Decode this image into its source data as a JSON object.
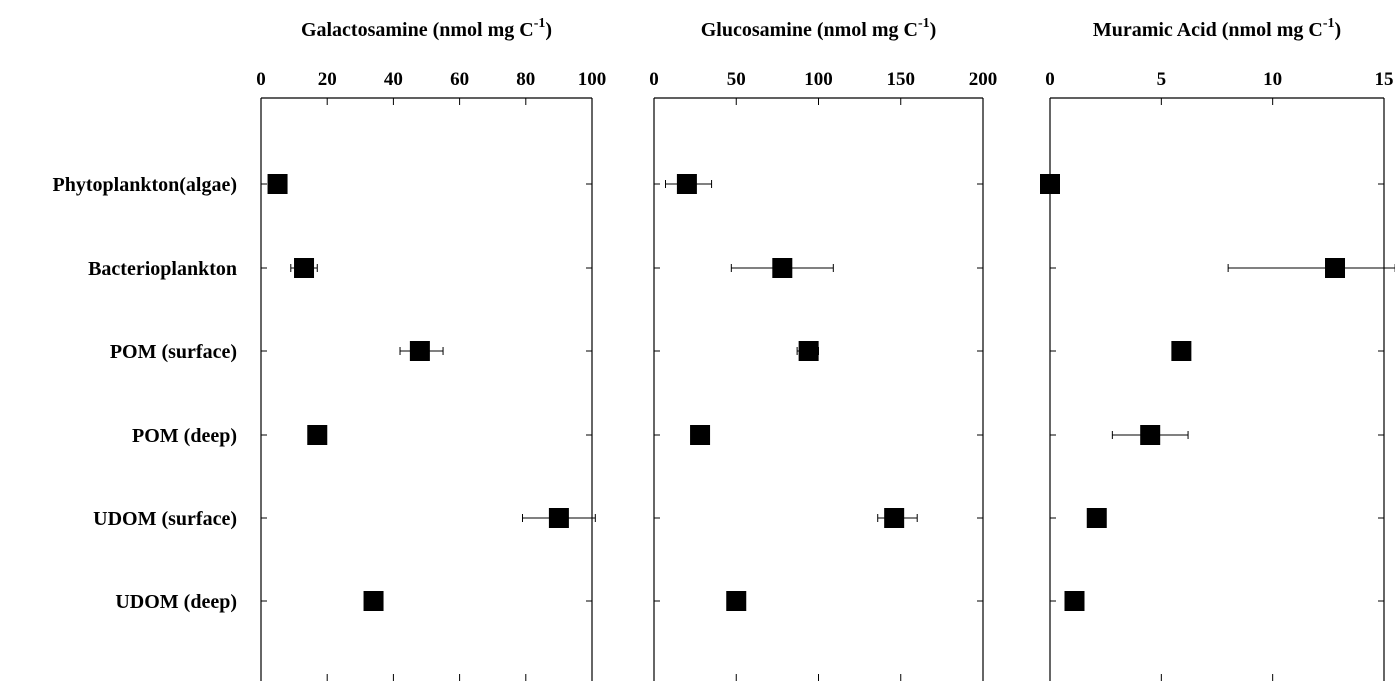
{
  "chart_data": {
    "type": "scatter",
    "categories": [
      "Phytoplankton(algae)",
      "Bacterioplankton",
      "POM (surface)",
      "POM (deep)",
      "UDOM (surface)",
      "UDOM (deep)"
    ],
    "panels": [
      {
        "title_main": "Galactosamine (nmol mg C",
        "title_sup": "-1",
        "title_close": ")",
        "xlim": [
          0,
          100
        ],
        "ticks": [
          0,
          20,
          40,
          60,
          80,
          100
        ],
        "tick_labels": [
          "0",
          "20",
          "40",
          "60",
          "80",
          "100"
        ],
        "values": [
          5,
          13,
          48,
          17,
          90,
          34
        ],
        "err_low": [
          5,
          9,
          42,
          17,
          79,
          34
        ],
        "err_high": [
          5,
          17,
          55,
          17,
          101,
          34
        ]
      },
      {
        "title_main": "Glucosamine (nmol mg C",
        "title_sup": "-1",
        "title_close": ")",
        "xlim": [
          0,
          200
        ],
        "ticks": [
          0,
          50,
          100,
          150,
          200
        ],
        "tick_labels": [
          "0",
          "50",
          "100",
          "150",
          "200"
        ],
        "values": [
          20,
          78,
          94,
          28,
          146,
          50
        ],
        "err_low": [
          7,
          47,
          87,
          28,
          136,
          50
        ],
        "err_high": [
          35,
          109,
          100,
          28,
          160,
          50
        ]
      },
      {
        "title_main": "Muramic Acid (nmol mg C",
        "title_sup": "-1",
        "title_close": ")",
        "xlim": [
          0,
          15
        ],
        "ticks": [
          0,
          5,
          10,
          15
        ],
        "tick_labels": [
          "0",
          "5",
          "10",
          "15"
        ],
        "values": [
          0,
          12.8,
          5.9,
          4.5,
          2.1,
          1.1
        ],
        "err_low": [
          0,
          8,
          5.9,
          2.8,
          2.1,
          1.1
        ],
        "err_high": [
          0,
          15.5,
          5.9,
          6.2,
          2.1,
          1.1
        ]
      }
    ]
  }
}
